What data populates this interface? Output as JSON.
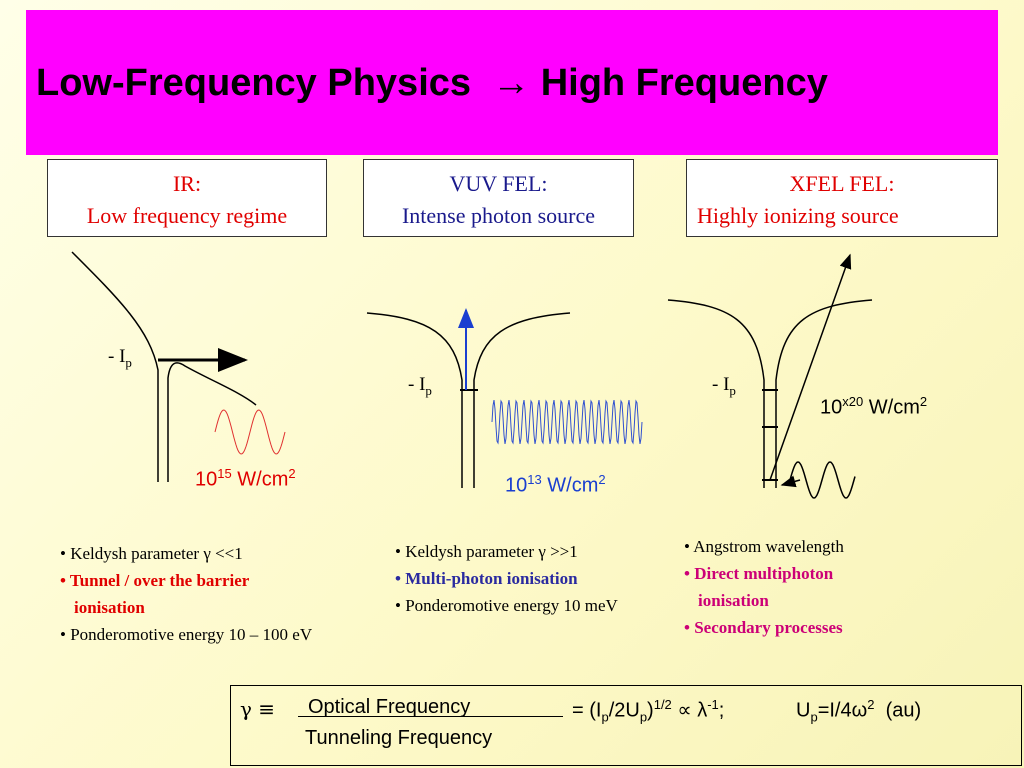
{
  "title": "Low-Frequency Physics  → High Frequency",
  "panels": [
    {
      "heading": "IR:",
      "subheading": "Low frequency regime",
      "level_label": {
        "text": "- I",
        "sub": "p"
      },
      "intensity": {
        "base": "10",
        "exp": "15",
        "unit": " W/cm",
        "unit_exp": "2"
      },
      "bullets": [
        "• Keldysh parameter γ <<1",
        "• Tunnel / over the barrier ionisation",
        "• Ponderomotive energy 10 – 100 eV"
      ]
    },
    {
      "heading": "VUV FEL:",
      "subheading": "Intense photon source",
      "level_label": {
        "text": "- I",
        "sub": "p"
      },
      "intensity": {
        "base": "10",
        "exp": "13",
        "unit": " W/cm",
        "unit_exp": "2"
      },
      "bullets": [
        "• Keldysh parameter γ >>1",
        "• Multi-photon ionisation",
        "• Ponderomotive energy 10 meV"
      ]
    },
    {
      "heading": "XFEL FEL:",
      "subheading": "Highly ionizing source",
      "level_label": {
        "text": "- I",
        "sub": "p"
      },
      "intensity": {
        "base": "10",
        "exp": "x20",
        "unit": " W/cm",
        "unit_exp": "2"
      },
      "bullets": [
        "• Angstrom wavelength",
        "• Direct multiphoton ionisation",
        "• Secondary processes"
      ]
    }
  ],
  "formula": {
    "gamma_def": "γ ≡",
    "numerator": "Optical Frequency",
    "denominator": "Tunneling Frequency",
    "ratio": [
      "= (I",
      "p",
      "/2U",
      "p",
      ")",
      "1/2",
      " ∝ λ",
      "-1",
      ";"
    ],
    "ponderomotive": [
      "U",
      "p",
      "=I/4ω",
      "2",
      "  (au)"
    ]
  }
}
